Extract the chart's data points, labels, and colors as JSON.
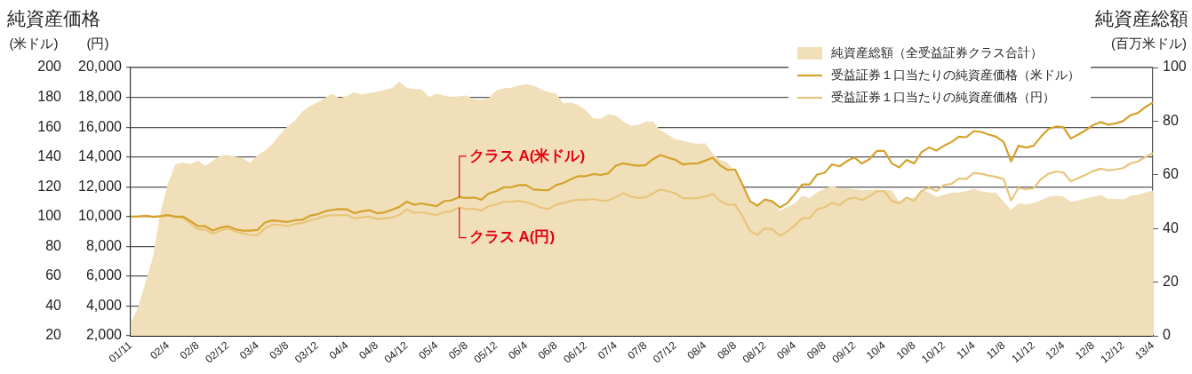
{
  "chart_data": {
    "type": "line",
    "title": "純資産価格",
    "ylabel": "(米ドル)",
    "y2label": "(円)",
    "y3label": "(百万米ドル)",
    "annotations": [
      "純資産総額",
      {
        "text": "クラス A(米ドル)",
        "x": "05/8",
        "y": 113
      },
      {
        "text": "クラス A(円)",
        "x": "05/8",
        "y": 106
      }
    ],
    "categories": [
      "01/11",
      null,
      null,
      null,
      null,
      "02/4",
      null,
      null,
      null,
      "02/8",
      null,
      null,
      null,
      "02/12",
      null,
      null,
      null,
      "03/4",
      null,
      null,
      null,
      "03/8",
      null,
      null,
      null,
      "03/12",
      null,
      null,
      null,
      "04/4",
      null,
      null,
      null,
      "04/8",
      null,
      null,
      null,
      "04/12",
      null,
      null,
      null,
      "05/4",
      null,
      null,
      null,
      "05/8",
      null,
      null,
      null,
      "05/12",
      null,
      null,
      null,
      "06/4",
      null,
      null,
      null,
      "06/8",
      null,
      null,
      null,
      "06/12",
      null,
      null,
      null,
      "07/4",
      null,
      null,
      null,
      "07/8",
      null,
      null,
      null,
      "07/12",
      null,
      null,
      null,
      "08/4",
      null,
      null,
      null,
      "08/8",
      null,
      null,
      null,
      "08/12",
      null,
      null,
      null,
      "09/4",
      null,
      null,
      null,
      "09/8",
      null,
      null,
      null,
      "09/12",
      null,
      null,
      null,
      "10/4",
      null,
      null,
      null,
      "10/8",
      null,
      null,
      null,
      "10/12",
      null,
      null,
      null,
      "11/4",
      null,
      null,
      null,
      "11/8",
      null,
      null,
      null,
      "11/12",
      null,
      null,
      null,
      "12/4",
      null,
      null,
      null,
      "12/8",
      null,
      null,
      null,
      "12/12",
      null,
      null,
      null,
      "13/4"
    ],
    "series": [
      {
        "name": "純資産総額（全受益証券クラス合計）",
        "type": "area",
        "axis": "y3",
        "color": "#f1dfb9",
        "values": [
          4.8,
          10.7,
          20,
          29.6,
          46.2,
          56.8,
          63.9,
          64.6,
          64,
          65.3,
          63.3,
          65.2,
          67.1,
          67.4,
          66.8,
          66.3,
          64.5,
          67.4,
          69,
          71.5,
          75,
          78,
          80.1,
          83.6,
          85.5,
          87,
          88.6,
          90.3,
          88.5,
          89.5,
          90.7,
          89.9,
          90.5,
          91,
          91.6,
          92.3,
          94.7,
          92.5,
          92,
          91.8,
          89,
          90.3,
          89.5,
          89,
          89.3,
          89.6,
          88.2,
          88,
          88.7,
          91.5,
          92.2,
          92.5,
          93.3,
          93.8,
          93.2,
          91.9,
          90.8,
          90.3,
          86.6,
          87,
          86,
          84,
          81.1,
          80.9,
          82.5,
          82.1,
          80,
          78.3,
          78.6,
          79.8,
          80,
          76.6,
          75,
          73.3,
          72.8,
          72,
          71.5,
          71.8,
          68,
          65.6,
          64.6,
          61,
          56,
          50.1,
          49,
          50.8,
          50.1,
          46.7,
          48,
          49.4,
          52.2,
          51.3,
          53.5,
          54.8,
          56,
          55,
          55,
          54.6,
          54.3,
          54.4,
          54.5,
          54.3,
          54.3,
          50.1,
          51,
          51.5,
          54.3,
          53.4,
          51.8,
          52.6,
          53.4,
          53.4,
          54,
          54.8,
          53.8,
          53.5,
          53.2,
          50,
          46.9,
          49.4,
          49,
          49.5,
          50.5,
          51.8,
          52.2,
          52,
          49.9,
          50.5,
          51.2,
          51.8,
          52.5,
          51.1,
          51,
          50.8,
          52.2,
          52.6,
          53.4,
          54.1
        ]
      },
      {
        "name": "受益証券１口当たりの純資産価格（米ドル）",
        "color": "#d4a22c",
        "values": [
          100,
          100,
          100.5,
          99.8,
          100.2,
          101,
          100,
          100,
          97,
          93.7,
          93.5,
          90.6,
          92.5,
          93.5,
          91.5,
          90.6,
          90.5,
          91,
          96,
          97.4,
          97,
          96.4,
          97.5,
          97.8,
          100.5,
          101.5,
          103.5,
          104.5,
          105,
          104.8,
          102.3,
          103.5,
          104.3,
          102.2,
          102.8,
          104.5,
          106.5,
          110,
          108,
          108.8,
          107.8,
          106.9,
          110.3,
          110.9,
          113,
          112.5,
          112.8,
          111.3,
          115.5,
          117,
          119.7,
          119.7,
          121.1,
          121.1,
          118.1,
          117.8,
          117.7,
          121.1,
          122.5,
          125,
          127.1,
          127.1,
          128.5,
          127.9,
          129,
          134,
          135.7,
          134.8,
          134.1,
          134.5,
          138.5,
          141.3,
          139.5,
          138.1,
          135,
          135.5,
          135.7,
          137.5,
          139.5,
          134.4,
          131.3,
          131.6,
          121.5,
          110.4,
          107.3,
          111.5,
          110.2,
          106,
          109,
          115,
          121.5,
          121.5,
          128.2,
          129.4,
          135,
          133.7,
          137.2,
          139.6,
          135.6,
          138.5,
          144,
          144,
          135.7,
          133,
          138,
          135.6,
          143.3,
          146.3,
          144.3,
          147.5,
          150,
          153.6,
          153.2,
          157.4,
          156.8,
          155,
          153.6,
          150,
          137,
          147.5,
          146.3,
          147.5,
          153.6,
          158.7,
          160.4,
          160,
          152.4,
          155,
          158,
          161.4,
          163.4,
          161.6,
          162.5,
          164,
          168,
          169.5,
          173.5,
          176.5
        ]
      },
      {
        "name": "受益証券１口当たりの純資産価格（円）",
        "axis": "y2",
        "color": "#e8c57b",
        "values": [
          10000,
          10000,
          10050,
          9980,
          10020,
          10080,
          9950,
          9920,
          9550,
          9160,
          9120,
          8860,
          9050,
          9200,
          9000,
          8880,
          8780,
          8760,
          9200,
          9460,
          9450,
          9350,
          9500,
          9560,
          9750,
          9850,
          10040,
          10080,
          10100,
          10100,
          9880,
          9950,
          10000,
          9830,
          9880,
          9940,
          10100,
          10490,
          10240,
          10300,
          10200,
          10100,
          10300,
          10350,
          10630,
          10500,
          10530,
          10400,
          10700,
          10800,
          11000,
          11000,
          11050,
          10960,
          10800,
          10600,
          10500,
          10800,
          10900,
          11050,
          11130,
          11130,
          11180,
          11070,
          11070,
          11300,
          11560,
          11350,
          11250,
          11290,
          11550,
          11820,
          11700,
          11560,
          11230,
          11230,
          11230,
          11350,
          11520,
          11040,
          10800,
          10800,
          10020,
          9030,
          8780,
          9200,
          9140,
          8710,
          8990,
          9400,
          9890,
          9890,
          10490,
          10610,
          10930,
          10760,
          11150,
          11280,
          11100,
          11350,
          11700,
          11700,
          11050,
          10890,
          11280,
          11050,
          11720,
          11940,
          11720,
          12110,
          12190,
          12560,
          12510,
          12930,
          12870,
          12750,
          12660,
          12510,
          11070,
          11940,
          11820,
          11910,
          12510,
          12870,
          13010,
          12960,
          12370,
          12580,
          12800,
          13050,
          13210,
          13100,
          13160,
          13250,
          13580,
          13700,
          14000,
          14250
        ]
      }
    ],
    "ylim": [
      20,
      200
    ],
    "yticks": [
      20,
      40,
      60,
      80,
      100,
      120,
      140,
      160,
      180,
      200
    ],
    "y2lim": [
      2000,
      20000
    ],
    "y2ticks": [
      {
        "value": 2000,
        "label": "2,000"
      },
      {
        "value": 4000,
        "label": "4,000"
      },
      {
        "value": 6000,
        "label": "6,000"
      },
      {
        "value": 8000,
        "label": "8,000"
      },
      {
        "value": 10000,
        "label": "10,000"
      },
      {
        "value": 12000,
        "label": "12,000"
      },
      {
        "value": 14000,
        "label": "14,000"
      },
      {
        "value": 16000,
        "label": "16,000"
      },
      {
        "value": 18000,
        "label": "18,000"
      },
      {
        "value": 20000,
        "label": "20,000"
      }
    ],
    "y3lim": [
      0,
      100
    ],
    "y3ticks": [
      0,
      20,
      40,
      60,
      80,
      100
    ],
    "grid": "y",
    "legend": "top right",
    "marker": "none",
    "line_style": "solid"
  }
}
